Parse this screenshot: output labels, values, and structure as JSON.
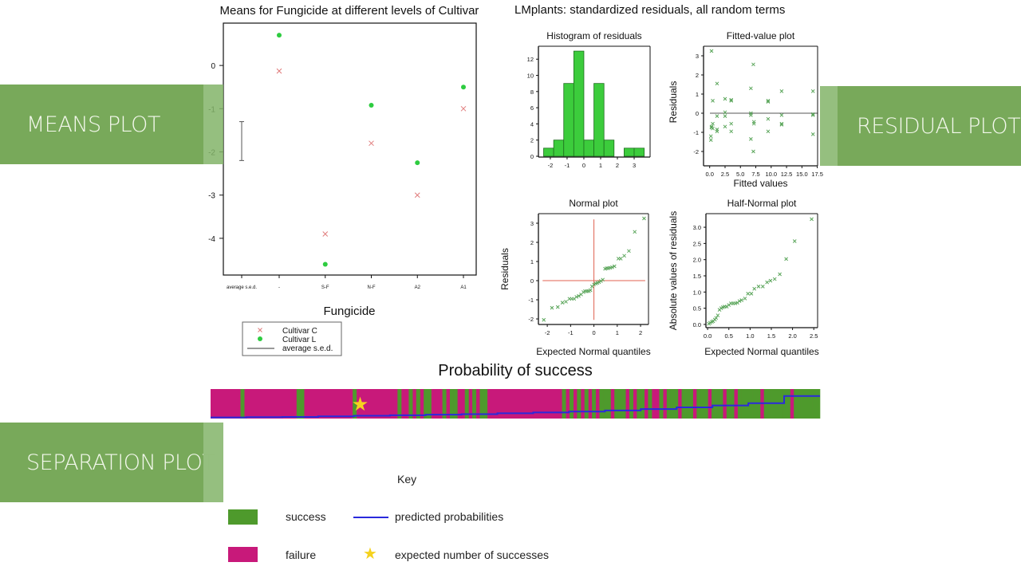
{
  "suptitle": "LMplants: standardized residuals, all random terms",
  "banners": {
    "means": "MEANS PLOT",
    "residual": "RESIDUAL PLOT",
    "separation": "SEPARATION PLOT"
  },
  "colors": {
    "banner": "#78a95a",
    "success": "#4e9a2c",
    "failure": "#c8197a",
    "predicted_line": "#2a2adc",
    "star": "#f5d21e",
    "cultivar_c": "#e07a7a",
    "cultivar_l": "#2ecc40",
    "residual_marker": "#5aa55a",
    "reference_line": "#e06050",
    "hist_bar": "#3ccc3c"
  },
  "key": {
    "title": "Key",
    "success": "success",
    "failure": "failure",
    "predicted": "predicted probabilities",
    "expected": "expected number of successes"
  },
  "chart_data": [
    {
      "type": "scatter",
      "title": "Means for Fungicide at different levels of Cultivar",
      "xlabel": "Fungicide",
      "ylabel": "",
      "categories": [
        "average s.e.d.",
        "-",
        "S-F",
        "N-F",
        "A2",
        "A1"
      ],
      "yticks": [
        0,
        -1,
        -2,
        -3,
        -4
      ],
      "ylim": [
        -4.85,
        0.98
      ],
      "series": [
        {
          "name": "Cultivar C",
          "marker": "x",
          "values": [
            null,
            -0.13,
            -3.9,
            -1.8,
            -3.0,
            -1.0
          ]
        },
        {
          "name": "Cultivar L",
          "marker": "dot",
          "values": [
            null,
            0.7,
            -4.6,
            -0.92,
            -2.25,
            -0.5
          ]
        }
      ],
      "sed": {
        "name": "average s.e.d.",
        "low": -2.2,
        "high": -1.3
      },
      "legend": "bottom-left"
    },
    {
      "type": "bar",
      "title": "Histogram of residuals",
      "bin_edges": [
        -2.4,
        -1.8,
        -1.2,
        -0.6,
        0,
        0.6,
        1.2,
        1.8,
        2.4,
        3.0,
        3.6
      ],
      "counts": [
        1,
        2,
        9,
        13,
        2,
        9,
        2,
        0,
        1,
        1
      ],
      "xticks": [
        -2,
        -1,
        0,
        1,
        2,
        3
      ],
      "yticks": [
        0,
        2,
        4,
        6,
        8,
        10,
        12
      ],
      "xlim": [
        -2.71,
        3.95
      ],
      "ylim": [
        -0.1,
        13.6
      ]
    },
    {
      "type": "scatter",
      "title": "Fitted-value plot",
      "xlabel": "Fitted values",
      "ylabel": "Residuals",
      "xticks": [
        "0.0",
        "2.5",
        "5.0",
        "7.5",
        "10.0",
        "12.5",
        "15.0",
        "17.5"
      ],
      "yticks": [
        3,
        2,
        1,
        0,
        -1,
        -2
      ],
      "xlim": [
        -1.0,
        17.55
      ],
      "ylim": [
        -2.75,
        3.5
      ],
      "hline": 0,
      "points": [
        [
          0.3,
          3.25
        ],
        [
          0.5,
          0.65
        ],
        [
          0.3,
          -0.75
        ],
        [
          0.3,
          -0.7
        ],
        [
          0.5,
          -0.55
        ],
        [
          0.5,
          -0.8
        ],
        [
          0.2,
          -1.2
        ],
        [
          0.2,
          -1.4
        ],
        [
          1.2,
          1.55
        ],
        [
          1.2,
          -0.15
        ],
        [
          1.2,
          -0.85
        ],
        [
          1.2,
          -0.95
        ],
        [
          2.5,
          0.75
        ],
        [
          2.5,
          0.05
        ],
        [
          2.5,
          -0.15
        ],
        [
          2.5,
          -0.7
        ],
        [
          3.5,
          0.7
        ],
        [
          3.5,
          0.65
        ],
        [
          3.5,
          -0.55
        ],
        [
          3.5,
          -0.95
        ],
        [
          6.7,
          1.3
        ],
        [
          6.7,
          0
        ],
        [
          6.7,
          -0.1
        ],
        [
          6.7,
          -1.35
        ],
        [
          7.1,
          2.55
        ],
        [
          7.2,
          -0.45
        ],
        [
          7.2,
          -0.55
        ],
        [
          7.1,
          -2.0
        ],
        [
          9.5,
          0.65
        ],
        [
          9.5,
          0.6
        ],
        [
          9.5,
          -0.3
        ],
        [
          9.5,
          -0.95
        ],
        [
          11.7,
          1.15
        ],
        [
          11.7,
          -0.1
        ],
        [
          11.7,
          -0.55
        ],
        [
          11.7,
          -0.6
        ],
        [
          16.8,
          1.15
        ],
        [
          16.8,
          -0.05
        ],
        [
          16.8,
          -0.1
        ],
        [
          16.8,
          -1.1
        ]
      ]
    },
    {
      "type": "scatter",
      "title": "Normal plot",
      "xlabel": "Expected Normal quantiles",
      "ylabel": "Residuals",
      "xticks": [
        -2,
        -1,
        0,
        1,
        2
      ],
      "yticks": [
        3,
        2,
        1,
        0,
        -1,
        -2
      ],
      "xlim": [
        -2.38,
        2.34
      ],
      "ylim": [
        -2.29,
        3.5
      ],
      "hline": 0,
      "vline": 0,
      "points": [
        [
          -2.15,
          -2.05
        ],
        [
          -1.8,
          -1.42
        ],
        [
          -1.55,
          -1.38
        ],
        [
          -1.35,
          -1.15
        ],
        [
          -1.2,
          -1.1
        ],
        [
          -1.05,
          -0.95
        ],
        [
          -0.95,
          -0.95
        ],
        [
          -0.85,
          -0.95
        ],
        [
          -0.75,
          -0.85
        ],
        [
          -0.65,
          -0.8
        ],
        [
          -0.55,
          -0.72
        ],
        [
          -0.45,
          -0.6
        ],
        [
          -0.38,
          -0.55
        ],
        [
          -0.3,
          -0.55
        ],
        [
          -0.22,
          -0.55
        ],
        [
          -0.15,
          -0.5
        ],
        [
          -0.08,
          -0.3
        ],
        [
          0,
          -0.2
        ],
        [
          0.08,
          -0.15
        ],
        [
          0.15,
          -0.12
        ],
        [
          0.22,
          -0.08
        ],
        [
          0.3,
          -0.02
        ],
        [
          0.38,
          0.05
        ],
        [
          0.48,
          0.62
        ],
        [
          0.55,
          0.65
        ],
        [
          0.62,
          0.65
        ],
        [
          0.7,
          0.67
        ],
        [
          0.78,
          0.7
        ],
        [
          0.88,
          0.75
        ],
        [
          1.05,
          1.15
        ],
        [
          1.15,
          1.15
        ],
        [
          1.3,
          1.3
        ],
        [
          1.5,
          1.55
        ],
        [
          1.75,
          2.55
        ],
        [
          2.15,
          3.25
        ]
      ]
    },
    {
      "type": "scatter",
      "title": "Half-Normal plot",
      "xlabel": "Expected Normal quantiles",
      "ylabel": "Absolute values of residuals",
      "xticks": [
        "0.0",
        "0.5",
        "1.0",
        "1.5",
        "2.0",
        "2.5"
      ],
      "yticks": [
        "0.0",
        "0.5",
        "1.0",
        "1.5",
        "2.0",
        "2.5",
        "3.0"
      ],
      "xlim": [
        -0.04,
        2.59
      ],
      "ylim": [
        -0.1,
        3.42
      ],
      "points": [
        [
          0.03,
          0.02
        ],
        [
          0.06,
          0.05
        ],
        [
          0.1,
          0.08
        ],
        [
          0.13,
          0.1
        ],
        [
          0.17,
          0.15
        ],
        [
          0.2,
          0.2
        ],
        [
          0.24,
          0.28
        ],
        [
          0.28,
          0.45
        ],
        [
          0.32,
          0.5
        ],
        [
          0.36,
          0.53
        ],
        [
          0.4,
          0.55
        ],
        [
          0.45,
          0.55
        ],
        [
          0.5,
          0.6
        ],
        [
          0.55,
          0.65
        ],
        [
          0.6,
          0.65
        ],
        [
          0.65,
          0.65
        ],
        [
          0.7,
          0.67
        ],
        [
          0.75,
          0.72
        ],
        [
          0.8,
          0.75
        ],
        [
          0.88,
          0.8
        ],
        [
          0.95,
          0.95
        ],
        [
          1.03,
          0.95
        ],
        [
          1.1,
          1.1
        ],
        [
          1.2,
          1.17
        ],
        [
          1.3,
          1.17
        ],
        [
          1.4,
          1.3
        ],
        [
          1.48,
          1.35
        ],
        [
          1.58,
          1.4
        ],
        [
          1.7,
          1.55
        ],
        [
          1.85,
          2.02
        ],
        [
          2.05,
          2.57
        ],
        [
          2.45,
          3.25
        ]
      ]
    },
    {
      "type": "separation",
      "title": "Probability of success",
      "outcomes": "0000000010000000000000011000000000000010000000000010010101100010110010101100000000000000000000101010101011101110101101001011101110111011101101111110111111101111111",
      "predicted_probabilities": [
        0.01,
        0.02,
        0.03,
        0.05,
        0.07,
        0.09,
        0.11,
        0.13,
        0.16,
        0.19,
        0.22,
        0.26,
        0.31,
        0.37,
        0.44,
        0.52,
        0.78
      ],
      "expected_successes": 40
    }
  ]
}
